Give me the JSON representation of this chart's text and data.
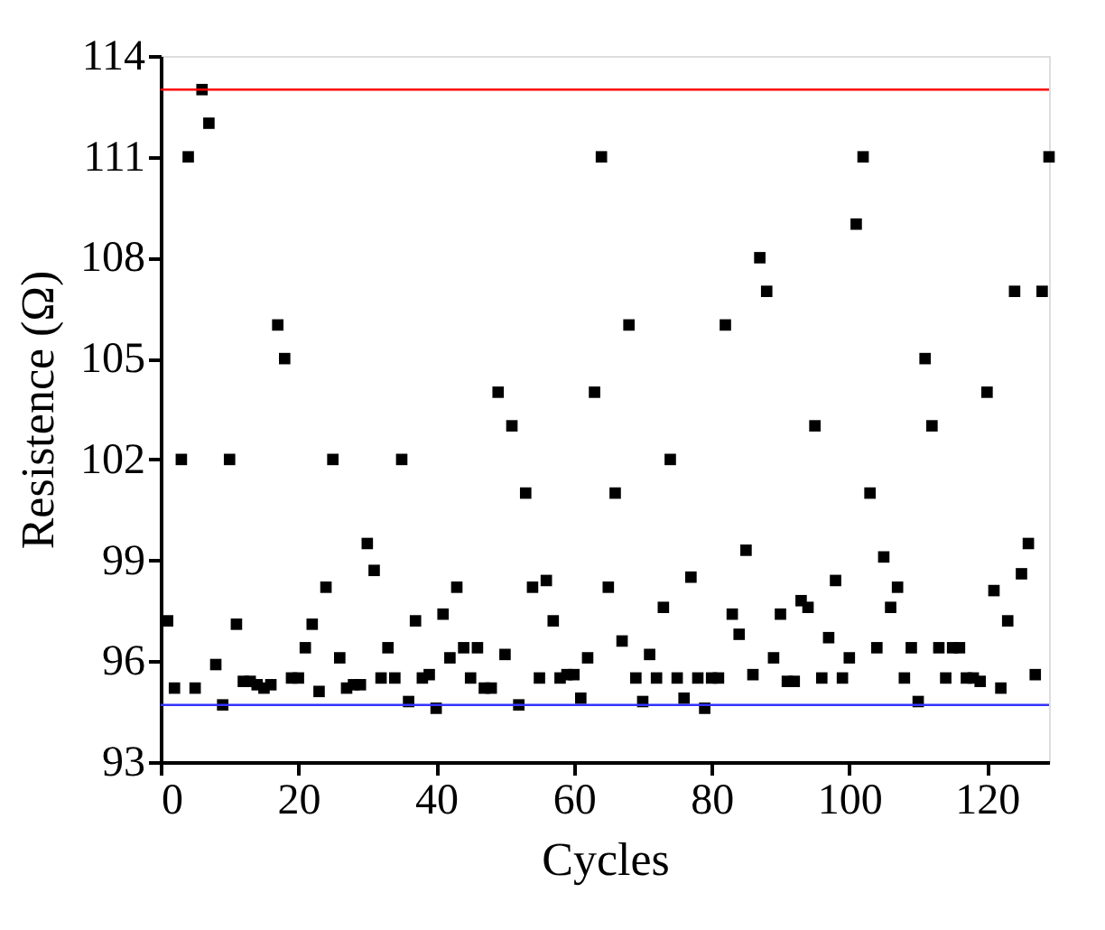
{
  "chart_data": {
    "type": "scatter",
    "xlabel": "Cycles",
    "ylabel": "Resistence (Ω)",
    "xlim": [
      0,
      129
    ],
    "xticks": [
      0,
      20,
      40,
      60,
      80,
      100,
      120
    ],
    "ylim": [
      93,
      114
    ],
    "yticks": [
      93,
      96,
      99,
      102,
      105,
      108,
      111,
      114
    ],
    "grid": false,
    "marker": "square",
    "series": [
      {
        "color": "#000000",
        "x": [
          1,
          2,
          3,
          4,
          5,
          6,
          7,
          8,
          9,
          10,
          11,
          12,
          13,
          14,
          15,
          16,
          17,
          18,
          19,
          20,
          21,
          22,
          23,
          24,
          25,
          26,
          27,
          28,
          29,
          30,
          31,
          32,
          33,
          34,
          35,
          36,
          37,
          38,
          39,
          40,
          41,
          42,
          43,
          44,
          45,
          46,
          47,
          48,
          49,
          50,
          51,
          52,
          53,
          54,
          55,
          56,
          57,
          58,
          59,
          60,
          61,
          62,
          63,
          64,
          65,
          66,
          67,
          68,
          69,
          70,
          71,
          72,
          73,
          74,
          75,
          76,
          77,
          78,
          79,
          80,
          81,
          82,
          83,
          84,
          85,
          86,
          87,
          88,
          89,
          90,
          91,
          92,
          93,
          94,
          95,
          96,
          97,
          98,
          99,
          100,
          101,
          102,
          103,
          104,
          105,
          106,
          107,
          108,
          109,
          110,
          111,
          112,
          113,
          114,
          115,
          116,
          117,
          118,
          119,
          120,
          121,
          122,
          123,
          124,
          125,
          126,
          127,
          128,
          129
        ],
        "values": [
          97.2,
          95.2,
          102.0,
          111.0,
          95.2,
          113.0,
          112.0,
          95.9,
          94.7,
          102.0,
          97.1,
          95.4,
          95.4,
          95.3,
          95.2,
          95.3,
          106.0,
          105.0,
          95.5,
          95.5,
          96.4,
          97.1,
          95.1,
          98.2,
          102.0,
          96.1,
          95.2,
          95.3,
          95.3,
          99.5,
          98.7,
          95.5,
          96.4,
          95.5,
          102.0,
          94.8,
          97.2,
          95.5,
          95.6,
          94.6,
          97.4,
          96.1,
          98.2,
          96.4,
          95.5,
          96.4,
          95.2,
          95.2,
          104.0,
          96.2,
          103.0,
          94.7,
          101.0,
          98.2,
          95.5,
          98.4,
          97.2,
          95.5,
          95.6,
          95.6,
          94.9,
          96.1,
          104.0,
          111.0,
          98.2,
          101.0,
          96.6,
          106.0,
          95.5,
          94.8,
          96.2,
          95.5,
          97.6,
          102.0,
          95.5,
          94.9,
          98.5,
          95.5,
          94.6,
          95.5,
          95.5,
          106.0,
          97.4,
          96.8,
          99.3,
          95.6,
          108.0,
          107.0,
          96.1,
          97.4,
          95.4,
          95.4,
          97.8,
          97.6,
          103.0,
          95.5,
          96.7,
          98.4,
          95.5,
          96.1,
          109.0,
          111.0,
          101.0,
          96.4,
          99.1,
          97.6,
          98.2,
          95.5,
          96.4,
          94.8,
          105.0,
          103.0,
          96.4,
          95.5,
          96.4,
          96.4,
          95.5,
          95.5,
          95.4,
          104.0,
          98.1,
          95.2,
          97.2,
          107.0,
          98.6,
          99.5,
          95.6,
          107.0,
          111.0
        ]
      }
    ],
    "ref_lines": [
      {
        "axis": "y",
        "value": 113,
        "color": "#ff0000"
      },
      {
        "axis": "y",
        "value": 94.7,
        "color": "#3333ff"
      }
    ]
  }
}
